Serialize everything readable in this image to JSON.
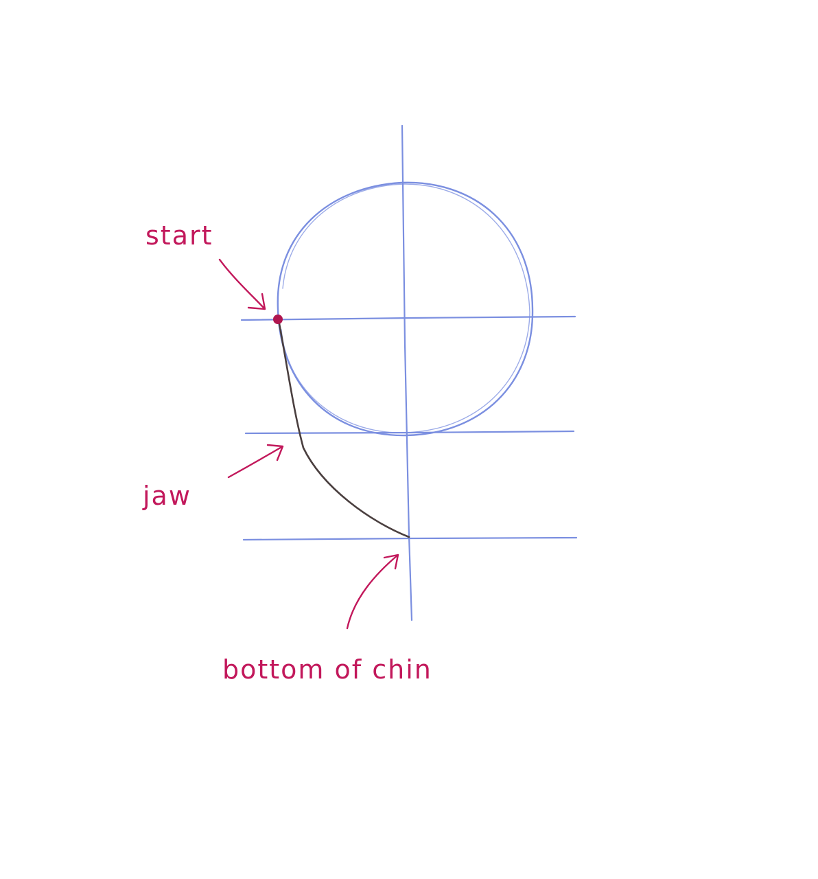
{
  "labels": {
    "start": "start",
    "jaw": "jaw",
    "chin": "bottom of chin"
  },
  "colors": {
    "guide": "#7b8fe0",
    "annotation": "#c2185b",
    "jaw_stroke": "#4a3f3f",
    "start_point": "#b0154f",
    "background": "#ffffff"
  }
}
